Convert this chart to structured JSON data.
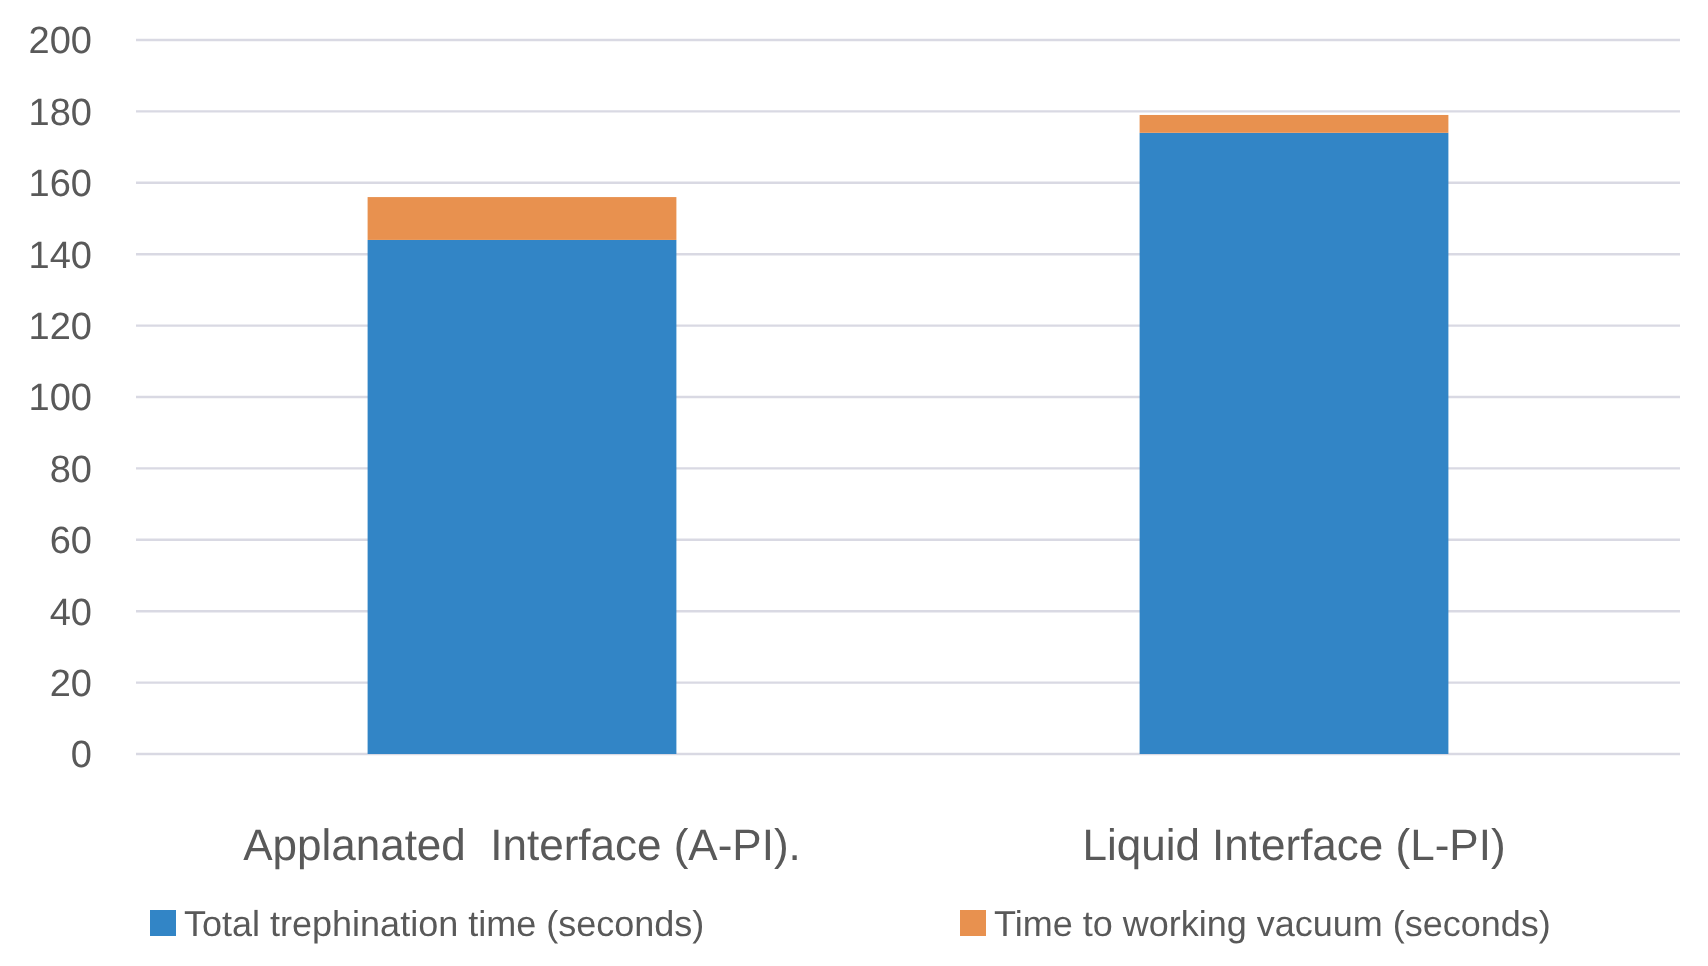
{
  "chart_data": {
    "type": "bar",
    "stacked": true,
    "categories": [
      "Applanated  Interface (A-PI).",
      "Liquid Interface (L-PI)"
    ],
    "series": [
      {
        "name": "Total trephination time (seconds)",
        "color": "#3285c6",
        "values": [
          144,
          174
        ]
      },
      {
        "name": "Time to working vacuum (seconds)",
        "color": "#e8914f",
        "values": [
          12,
          5
        ]
      }
    ],
    "ylim": [
      0,
      200
    ],
    "yticks": [
      0,
      20,
      40,
      60,
      80,
      100,
      120,
      140,
      160,
      180,
      200
    ],
    "grid": "y",
    "legend": "bottom"
  }
}
